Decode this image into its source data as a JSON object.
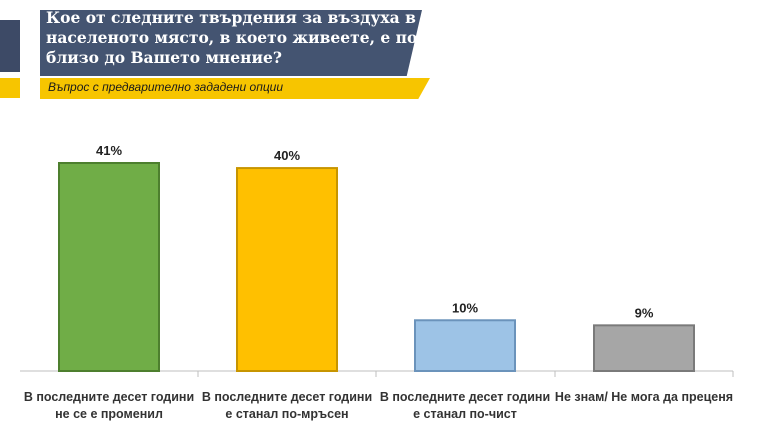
{
  "header": {
    "title": "Кое от следните твърдения за въздуха в населеното място, в което живеете, е по-близо до Вашето мнение?",
    "subtitle": "Въпрос с предварително зададени опции"
  },
  "colors": {
    "header_bg": "#445471",
    "subtitle_bg": "#f7c500"
  },
  "chart_data": {
    "type": "bar",
    "categories": [
      [
        "В последните десет години",
        "не се е променил"
      ],
      [
        "В последните десет години",
        "е станал по-мръсен"
      ],
      [
        "В последните десет години",
        "е станал по-чист"
      ],
      [
        "Не знам/ Не мога да преценя"
      ]
    ],
    "values": [
      41,
      40,
      10,
      9
    ],
    "value_labels": [
      "41%",
      "40%",
      "10%",
      "9%"
    ],
    "bar_colors": [
      "#70ad47",
      "#ffc000",
      "#9dc3e6",
      "#a6a6a6"
    ],
    "bar_stroke_colors": [
      "#4d7f2e",
      "#c79500",
      "#6b93bb",
      "#7a7a7a"
    ],
    "ylim": [
      0,
      41
    ],
    "grid": false,
    "legend": "none"
  }
}
